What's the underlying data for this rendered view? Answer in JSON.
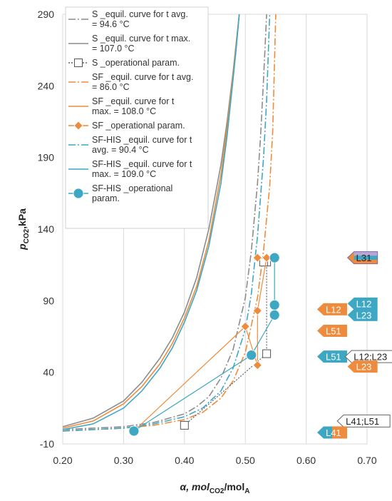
{
  "chart_data": {
    "type": "line",
    "title": "",
    "xlabel": {
      "main": "α, mol",
      "sub1": "CO2",
      "mid": "/mol",
      "sub2": "A"
    },
    "ylabel": {
      "main": "p",
      "sub": "CO2",
      "rest": ",kPa"
    },
    "xlim": [
      0.2,
      0.7
    ],
    "ylim": [
      -10,
      290
    ],
    "x_ticks": [
      "0.20",
      "0.30",
      "0.40",
      "0.50",
      "0.60",
      "0.70"
    ],
    "y_ticks": [
      "-10",
      "40",
      "90",
      "140",
      "190",
      "240",
      "290"
    ],
    "grid": {
      "vertical": true,
      "horizontal": false
    },
    "legend_position": "top-left",
    "colors": {
      "S": "#8c8c8c",
      "SF": "#ee8b3c",
      "SFHIS": "#3ea8c4",
      "S_op": "#999999"
    },
    "series": [
      {
        "name": "S _equil. curve for t avg. = 94.6 °C",
        "style": "dashdot",
        "color": "#8c8c8c",
        "x": [
          0.2,
          0.3,
          0.35,
          0.4,
          0.42,
          0.44,
          0.46,
          0.48,
          0.5,
          0.51,
          0.52,
          0.525,
          0.53,
          0.535
        ],
        "y": [
          0,
          2,
          5,
          11,
          16,
          23,
          36,
          56,
          92,
          125,
          172,
          205,
          245,
          290
        ]
      },
      {
        "name": "S _equil. curve for t max. = 107.0 °C",
        "style": "solid",
        "color": "#8c8c8c",
        "x": [
          0.2,
          0.25,
          0.3,
          0.33,
          0.36,
          0.38,
          0.4,
          0.42,
          0.44,
          0.46,
          0.47,
          0.48,
          0.485,
          0.49
        ],
        "y": [
          2,
          8,
          20,
          33,
          50,
          64,
          82,
          106,
          140,
          185,
          215,
          250,
          270,
          290
        ]
      },
      {
        "name": "S _operational param.",
        "style": "dotted-open-square",
        "color": "#999999",
        "x": [
          0.4,
          0.535,
          0.535,
          0.53
        ],
        "y": [
          3,
          53,
          117,
          117
        ]
      },
      {
        "name": "SF _equil. curve for t avg. = 86.0 °C",
        "style": "dashdot",
        "color": "#ee8b3c",
        "x": [
          0.2,
          0.3,
          0.35,
          0.4,
          0.43,
          0.46,
          0.48,
          0.5,
          0.52,
          0.53,
          0.54,
          0.545,
          0.55
        ],
        "y": [
          -1,
          1,
          3,
          7,
          12,
          22,
          34,
          54,
          92,
          125,
          170,
          208,
          290
        ]
      },
      {
        "name": "SF _equil. curve for t max. = 108.0 °C",
        "style": "solid",
        "color": "#ee8b3c",
        "x": [
          0.2,
          0.25,
          0.3,
          0.33,
          0.36,
          0.38,
          0.4,
          0.42,
          0.44,
          0.46,
          0.47,
          0.48,
          0.485,
          0.49
        ],
        "y": [
          1,
          6,
          18,
          30,
          46,
          60,
          78,
          100,
          132,
          178,
          210,
          248,
          268,
          290
        ]
      },
      {
        "name": "SF _operational param.",
        "style": "solid-diamond",
        "color": "#ee8b3c",
        "x": [
          0.317,
          0.5,
          0.52,
          0.52,
          0.535,
          0.535,
          0.52
        ],
        "y": [
          -1,
          72,
          45,
          83,
          120,
          120,
          120
        ]
      },
      {
        "name": "SF-HIS _equil. curve for t avg. = 90.4 °C",
        "style": "dashdot",
        "color": "#3ea8c4",
        "x": [
          0.2,
          0.3,
          0.35,
          0.4,
          0.43,
          0.46,
          0.48,
          0.5,
          0.51,
          0.52,
          0.53,
          0.535,
          0.54
        ],
        "y": [
          -1,
          1,
          4,
          9,
          15,
          27,
          43,
          70,
          95,
          135,
          190,
          230,
          290
        ]
      },
      {
        "name": "SF-HIS _equil. curve for t max. = 109.0 °C",
        "style": "solid",
        "color": "#3ea8c4",
        "x": [
          0.2,
          0.25,
          0.3,
          0.33,
          0.36,
          0.38,
          0.4,
          0.42,
          0.44,
          0.46,
          0.47,
          0.48,
          0.485,
          0.49
        ],
        "y": [
          0,
          4,
          15,
          27,
          43,
          57,
          75,
          97,
          128,
          172,
          205,
          245,
          266,
          290
        ]
      },
      {
        "name": "SF-HIS _operational param.",
        "style": "solid-circle",
        "color": "#3ea8c4",
        "x": [
          0.317,
          0.51,
          0.548,
          0.548,
          0.548,
          0.548
        ],
        "y": [
          -1,
          52,
          80,
          87,
          120,
          120
        ]
      }
    ],
    "legend": [
      {
        "lines": [
          "S _equil. curve for t avg.",
          "= 94.6 °C"
        ],
        "style": "dashdot",
        "color": "#8c8c8c"
      },
      {
        "lines": [
          "S _equil. curve for t max.",
          "= 107.0 °C"
        ],
        "style": "solid",
        "color": "#8c8c8c"
      },
      {
        "lines": [
          "S _operational param."
        ],
        "style": "dotted-open-square",
        "color": "#999999"
      },
      {
        "lines": [
          "SF _equil. curve for t avg.",
          "= 86.0 °C"
        ],
        "style": "dashdot",
        "color": "#ee8b3c"
      },
      {
        "lines": [
          "SF _equil. curve for t",
          "max. = 108.0 °C"
        ],
        "style": "solid",
        "color": "#ee8b3c"
      },
      {
        "lines": [
          "SF _operational param."
        ],
        "style": "solid-diamond",
        "color": "#ee8b3c"
      },
      {
        "lines": [
          "SF-HIS _equil. curve for t",
          "avg. = 90.4 °C"
        ],
        "style": "dashdot",
        "color": "#3ea8c4"
      },
      {
        "lines": [
          "SF-HIS _equil. curve for t",
          "max. = 109.0 °C"
        ],
        "style": "solid",
        "color": "#3ea8c4"
      },
      {
        "lines": [
          "SF-HIS _operational",
          "param."
        ],
        "style": "solid-circle",
        "color": "#3ea8c4"
      }
    ],
    "annotations": [
      {
        "text": "L31",
        "x": 0.668,
        "y": 120,
        "color": "#7e6b9e",
        "variant": "tricolor"
      },
      {
        "text": "L12",
        "x": 0.668,
        "y": 88,
        "color": "#3ea8c4"
      },
      {
        "text": "L12",
        "x": 0.618,
        "y": 84,
        "color": "#ee8b3c"
      },
      {
        "text": "L23",
        "x": 0.668,
        "y": 80,
        "color": "#3ea8c4"
      },
      {
        "text": "L51",
        "x": 0.618,
        "y": 69,
        "color": "#ee8b3c"
      },
      {
        "text": "L51",
        "x": 0.618,
        "y": 51,
        "color": "#3ea8c4"
      },
      {
        "text": "L12;L23",
        "x": 0.664,
        "y": 51,
        "color": "#ffffff",
        "variant": "outline"
      },
      {
        "text": "L23",
        "x": 0.668,
        "y": 44,
        "color": "#ee8b3c"
      },
      {
        "text": "L41;L51",
        "x": 0.651,
        "y": 6,
        "color": "#ffffff",
        "variant": "outline"
      },
      {
        "text": "L41",
        "x": 0.618,
        "y": -2,
        "color": "#7e8f6e",
        "variant": "bicolor"
      }
    ]
  }
}
